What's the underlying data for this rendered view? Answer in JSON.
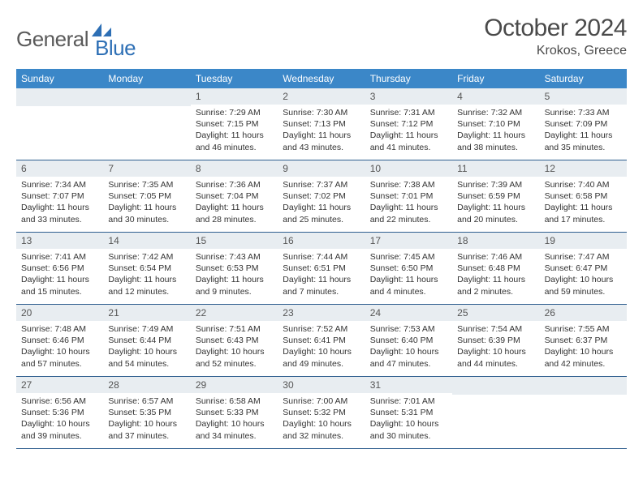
{
  "logo": {
    "text1": "General",
    "text2": "Blue"
  },
  "title": "October 2024",
  "location": "Krokos, Greece",
  "colors": {
    "header_bg": "#3b87c8",
    "header_text": "#ffffff",
    "daynum_bg": "#e8edf1",
    "week_border": "#2f5f8f",
    "logo_blue": "#2d6fb5",
    "logo_gray": "#5a5a5a"
  },
  "day_names": [
    "Sunday",
    "Monday",
    "Tuesday",
    "Wednesday",
    "Thursday",
    "Friday",
    "Saturday"
  ],
  "weeks": [
    [
      null,
      null,
      {
        "n": "1",
        "sr": "7:29 AM",
        "ss": "7:15 PM",
        "dh": "11",
        "dm": "46"
      },
      {
        "n": "2",
        "sr": "7:30 AM",
        "ss": "7:13 PM",
        "dh": "11",
        "dm": "43"
      },
      {
        "n": "3",
        "sr": "7:31 AM",
        "ss": "7:12 PM",
        "dh": "11",
        "dm": "41"
      },
      {
        "n": "4",
        "sr": "7:32 AM",
        "ss": "7:10 PM",
        "dh": "11",
        "dm": "38"
      },
      {
        "n": "5",
        "sr": "7:33 AM",
        "ss": "7:09 PM",
        "dh": "11",
        "dm": "35"
      }
    ],
    [
      {
        "n": "6",
        "sr": "7:34 AM",
        "ss": "7:07 PM",
        "dh": "11",
        "dm": "33"
      },
      {
        "n": "7",
        "sr": "7:35 AM",
        "ss": "7:05 PM",
        "dh": "11",
        "dm": "30"
      },
      {
        "n": "8",
        "sr": "7:36 AM",
        "ss": "7:04 PM",
        "dh": "11",
        "dm": "28"
      },
      {
        "n": "9",
        "sr": "7:37 AM",
        "ss": "7:02 PM",
        "dh": "11",
        "dm": "25"
      },
      {
        "n": "10",
        "sr": "7:38 AM",
        "ss": "7:01 PM",
        "dh": "11",
        "dm": "22"
      },
      {
        "n": "11",
        "sr": "7:39 AM",
        "ss": "6:59 PM",
        "dh": "11",
        "dm": "20"
      },
      {
        "n": "12",
        "sr": "7:40 AM",
        "ss": "6:58 PM",
        "dh": "11",
        "dm": "17"
      }
    ],
    [
      {
        "n": "13",
        "sr": "7:41 AM",
        "ss": "6:56 PM",
        "dh": "11",
        "dm": "15"
      },
      {
        "n": "14",
        "sr": "7:42 AM",
        "ss": "6:54 PM",
        "dh": "11",
        "dm": "12"
      },
      {
        "n": "15",
        "sr": "7:43 AM",
        "ss": "6:53 PM",
        "dh": "11",
        "dm": "9"
      },
      {
        "n": "16",
        "sr": "7:44 AM",
        "ss": "6:51 PM",
        "dh": "11",
        "dm": "7"
      },
      {
        "n": "17",
        "sr": "7:45 AM",
        "ss": "6:50 PM",
        "dh": "11",
        "dm": "4"
      },
      {
        "n": "18",
        "sr": "7:46 AM",
        "ss": "6:48 PM",
        "dh": "11",
        "dm": "2"
      },
      {
        "n": "19",
        "sr": "7:47 AM",
        "ss": "6:47 PM",
        "dh": "10",
        "dm": "59"
      }
    ],
    [
      {
        "n": "20",
        "sr": "7:48 AM",
        "ss": "6:46 PM",
        "dh": "10",
        "dm": "57"
      },
      {
        "n": "21",
        "sr": "7:49 AM",
        "ss": "6:44 PM",
        "dh": "10",
        "dm": "54"
      },
      {
        "n": "22",
        "sr": "7:51 AM",
        "ss": "6:43 PM",
        "dh": "10",
        "dm": "52"
      },
      {
        "n": "23",
        "sr": "7:52 AM",
        "ss": "6:41 PM",
        "dh": "10",
        "dm": "49"
      },
      {
        "n": "24",
        "sr": "7:53 AM",
        "ss": "6:40 PM",
        "dh": "10",
        "dm": "47"
      },
      {
        "n": "25",
        "sr": "7:54 AM",
        "ss": "6:39 PM",
        "dh": "10",
        "dm": "44"
      },
      {
        "n": "26",
        "sr": "7:55 AM",
        "ss": "6:37 PM",
        "dh": "10",
        "dm": "42"
      }
    ],
    [
      {
        "n": "27",
        "sr": "6:56 AM",
        "ss": "5:36 PM",
        "dh": "10",
        "dm": "39"
      },
      {
        "n": "28",
        "sr": "6:57 AM",
        "ss": "5:35 PM",
        "dh": "10",
        "dm": "37"
      },
      {
        "n": "29",
        "sr": "6:58 AM",
        "ss": "5:33 PM",
        "dh": "10",
        "dm": "34"
      },
      {
        "n": "30",
        "sr": "7:00 AM",
        "ss": "5:32 PM",
        "dh": "10",
        "dm": "32"
      },
      {
        "n": "31",
        "sr": "7:01 AM",
        "ss": "5:31 PM",
        "dh": "10",
        "dm": "30"
      },
      null,
      null
    ]
  ],
  "labels": {
    "sunrise": "Sunrise:",
    "sunset": "Sunset:",
    "daylight": "Daylight:",
    "hours": "hours",
    "and": "and",
    "minutes": "minutes."
  }
}
